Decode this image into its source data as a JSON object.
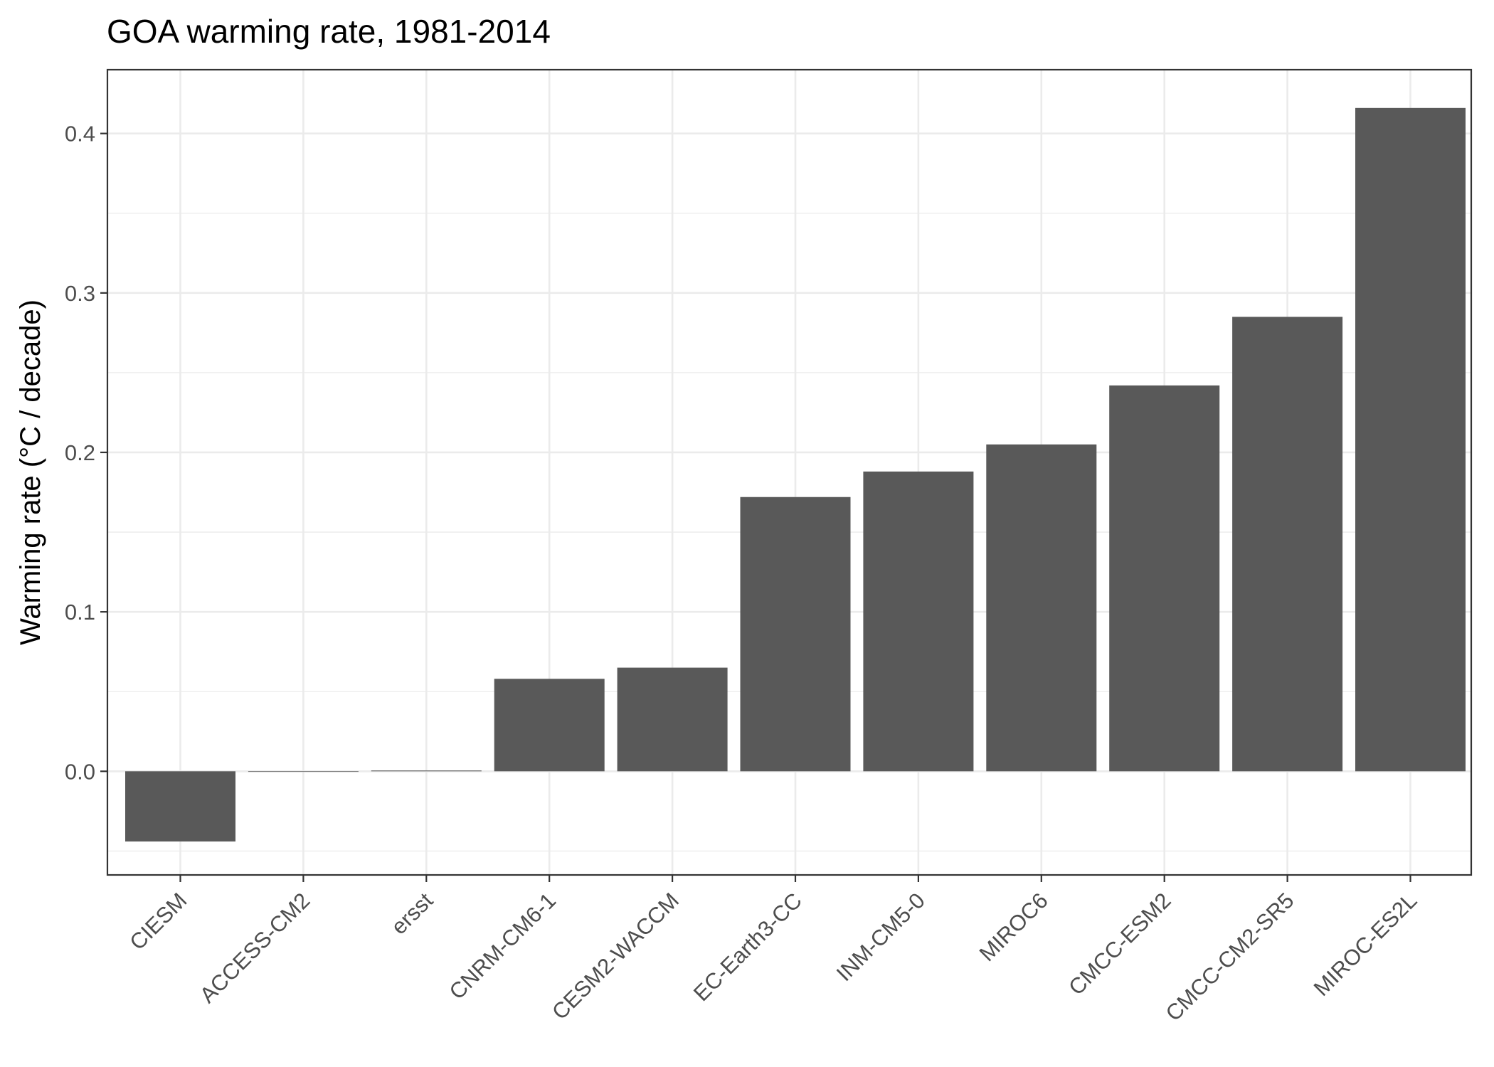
{
  "chart_data": {
    "type": "bar",
    "title": "GOA warming rate, 1981-2014",
    "xlabel": "",
    "ylabel": "Warming rate (°C / decade)",
    "categories": [
      "CIESM",
      "ACCESS-CM2",
      "ersst",
      "CNRM-CM6-1",
      "CESM2-WACCM",
      "EC-Earth3-CC",
      "INM-CM5-0",
      "MIROC6",
      "CMCC-ESM2",
      "CMCC-CM2-SR5",
      "MIROC-ES2L"
    ],
    "values": [
      -0.044,
      0.0,
      0.0005,
      0.058,
      0.065,
      0.172,
      0.188,
      0.205,
      0.242,
      0.285,
      0.416
    ],
    "ylim": [
      -0.065,
      0.44
    ],
    "yticks": [
      0.0,
      0.1,
      0.2,
      0.3,
      0.4
    ],
    "ytick_labels": [
      "0.0",
      "0.1",
      "0.2",
      "0.3",
      "0.4"
    ],
    "grid": true,
    "legend": "none",
    "colors": {
      "bar": "#595959",
      "grid": "#ebebeb",
      "panel_border": "#333333",
      "tick_text": "#4d4d4d"
    }
  }
}
